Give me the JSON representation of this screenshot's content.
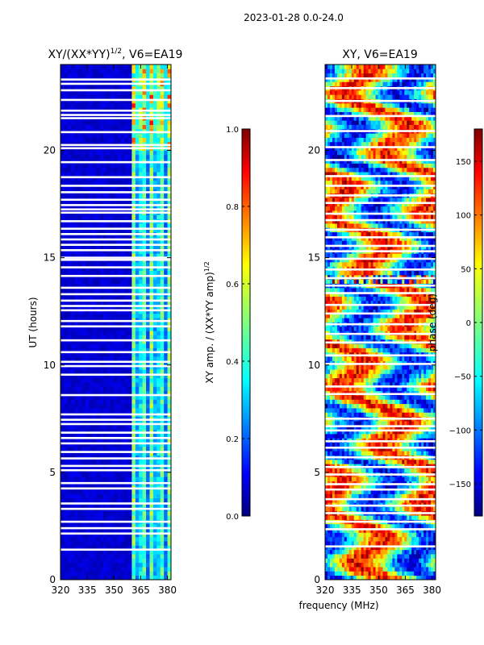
{
  "figure": {
    "suptitle": "2023-01-28 0.0-24.0",
    "common_xlabel": "frequency (MHz)"
  },
  "chart_data": [
    {
      "type": "heatmap",
      "title_main": "XY/(XX*YY)",
      "title_sup": "1/2",
      "title_rest": ", V6=EA19",
      "xlabel": "",
      "ylabel": "UT (hours)",
      "x_range": [
        320,
        382
      ],
      "y_range": [
        0,
        24
      ],
      "x_ticks": [
        320,
        335,
        350,
        365,
        380
      ],
      "y_ticks": [
        0,
        5,
        10,
        15,
        20
      ],
      "colormap": "jet",
      "colorbar": {
        "label_main": "XY amp. / (XX*YY amp)",
        "label_sup": "1/2",
        "range": [
          0.0,
          1.0
        ],
        "ticks": [
          "0.0",
          "0.2",
          "0.4",
          "0.6",
          "0.8",
          "1.0"
        ],
        "tick_values": [
          0.0,
          0.2,
          0.4,
          0.6,
          0.8,
          1.0
        ]
      },
      "gap_hours": [
        1.4,
        2.15,
        2.4,
        2.7,
        3.3,
        3.55,
        4.25,
        4.5,
        5.1,
        5.3,
        5.65,
        5.95,
        6.35,
        6.6,
        6.85,
        7.25,
        7.45,
        7.7,
        8.6,
        9.55,
        9.95,
        10.15,
        10.6,
        11.15,
        11.8,
        12.05,
        12.55,
        12.75,
        13.0,
        13.3,
        13.6,
        14.15,
        14.55,
        14.9,
        15.0,
        15.35,
        15.6,
        15.85,
        16.1,
        16.35,
        16.7,
        17.1,
        17.25,
        17.45,
        17.7,
        18.05,
        18.35,
        18.75,
        19.45,
        20.1,
        20.25,
        20.85,
        21.5,
        21.65,
        21.85,
        22.35,
        22.8,
        23.1,
        23.3
      ],
      "active_band_mhz": [
        360,
        382
      ],
      "quiet_level": 0.05,
      "active_level": 0.45
    },
    {
      "type": "heatmap",
      "title_main": "XY, V6=EA19",
      "xlabel": "",
      "ylabel": "",
      "x_range": [
        320,
        382
      ],
      "y_range": [
        0,
        24
      ],
      "x_ticks": [
        320,
        335,
        350,
        365,
        380
      ],
      "y_ticks": [
        0,
        5,
        10,
        15,
        20
      ],
      "colormap": "jet",
      "colorbar": {
        "label_main": "phase (deg)",
        "range": [
          -180,
          180
        ],
        "ticks": [
          "−150",
          "−100",
          "−50",
          "0",
          "50",
          "100",
          "150"
        ],
        "tick_values": [
          -150,
          -100,
          -50,
          0,
          50,
          100,
          150
        ]
      },
      "gap_hours": [
        1.55,
        2.35,
        2.7,
        3.1,
        3.45,
        3.75,
        4.2,
        4.45,
        4.9,
        5.25,
        5.7,
        6.15,
        6.45,
        6.95,
        7.15,
        7.5,
        8.65,
        9.0,
        10.05,
        10.45,
        11.05,
        11.45,
        11.9,
        12.4,
        12.8,
        13.35,
        13.7,
        14.05,
        14.45,
        14.95,
        15.3,
        15.55,
        15.95,
        16.3,
        16.75,
        17.05,
        17.55,
        17.9,
        18.35,
        18.8,
        19.55,
        20.15,
        20.9,
        21.6,
        22.3,
        22.9,
        23.35
      ]
    }
  ]
}
